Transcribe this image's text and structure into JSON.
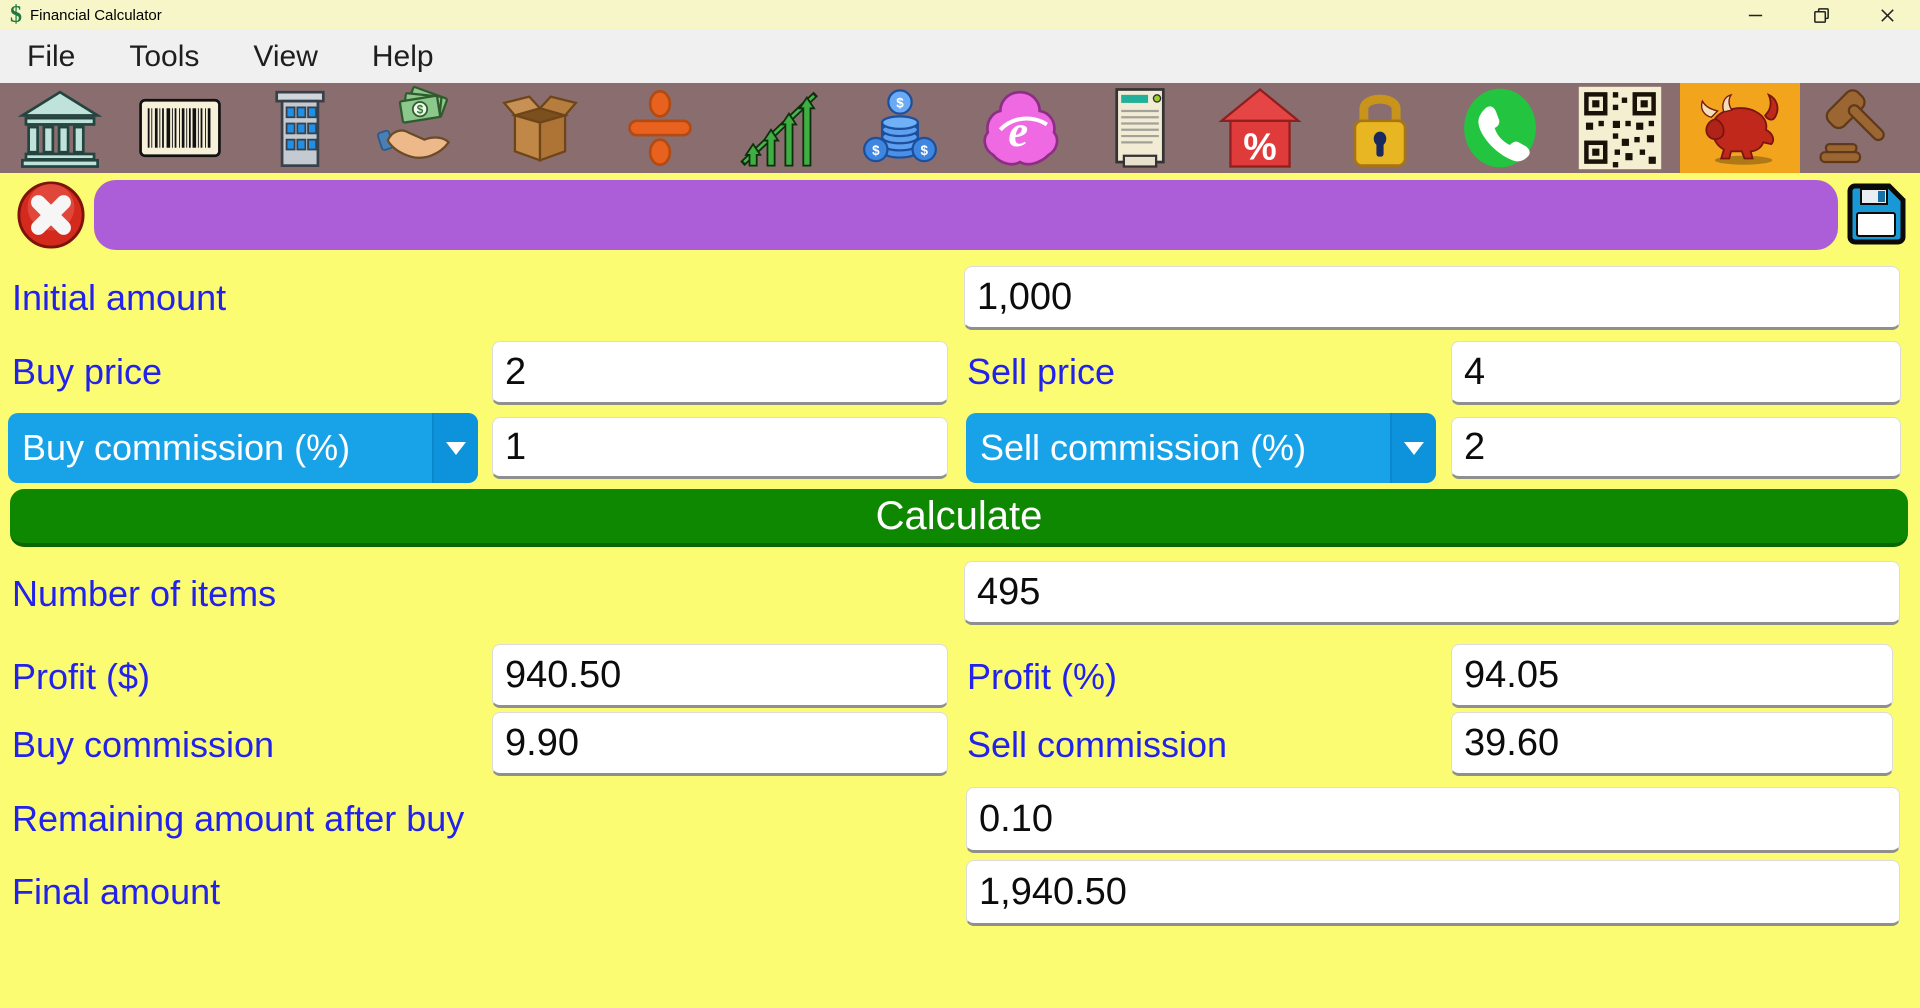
{
  "window": {
    "title": "Financial Calculator",
    "app_icon_glyph": "$",
    "controls": [
      "minimize",
      "restore",
      "close"
    ]
  },
  "menu": {
    "items": [
      "File",
      "Tools",
      "View",
      "Help"
    ]
  },
  "toolbar": {
    "buttons": [
      {
        "icon": "bank"
      },
      {
        "icon": "barcode"
      },
      {
        "icon": "office-building"
      },
      {
        "icon": "money-hand"
      },
      {
        "icon": "package-box"
      },
      {
        "icon": "division"
      },
      {
        "icon": "growth-arrows"
      },
      {
        "icon": "dollar-coins"
      },
      {
        "icon": "explorer-cloud"
      },
      {
        "icon": "document"
      },
      {
        "icon": "house-percent"
      },
      {
        "icon": "padlock"
      },
      {
        "icon": "phone"
      },
      {
        "icon": "qr-code"
      },
      {
        "icon": "bull",
        "highlighted": true
      },
      {
        "icon": "gavel"
      }
    ]
  },
  "actionbar": {
    "expression_value": ""
  },
  "form": {
    "initial_amount": {
      "label": "Initial amount",
      "value": "1,000"
    },
    "buy_price": {
      "label": "Buy price",
      "value": "2"
    },
    "sell_price": {
      "label": "Sell price",
      "value": "4"
    },
    "buy_commission_mode": {
      "label": "Buy commission (%)",
      "value": "1"
    },
    "sell_commission_mode": {
      "label": "Sell commission (%)",
      "value": "2"
    },
    "calculate_label": "Calculate",
    "number_of_items": {
      "label": "Number of items",
      "value": "495"
    },
    "profit_abs": {
      "label": "Profit ($)",
      "value": "940.50"
    },
    "profit_pct": {
      "label": "Profit (%)",
      "value": "94.05"
    },
    "buy_commission_result": {
      "label": "Buy commission",
      "value": "9.90"
    },
    "sell_commission_result": {
      "label": "Sell commission",
      "value": "39.60"
    },
    "remaining_after_buy": {
      "label": "Remaining amount after buy",
      "value": "0.10"
    },
    "final_amount": {
      "label": "Final amount",
      "value": "1,940.50"
    }
  },
  "colors": {
    "background_yellow": "#fcfc72",
    "titlebar_yellow": "#f6f6c9",
    "toolbar_mauve": "#8a6d6e",
    "purple_bar": "#ac5ed8",
    "dropdown_blue": "#18a3e8",
    "calculate_green": "#0e8800",
    "label_blue": "#2222ec",
    "highlight_amber": "#f2a41d"
  }
}
